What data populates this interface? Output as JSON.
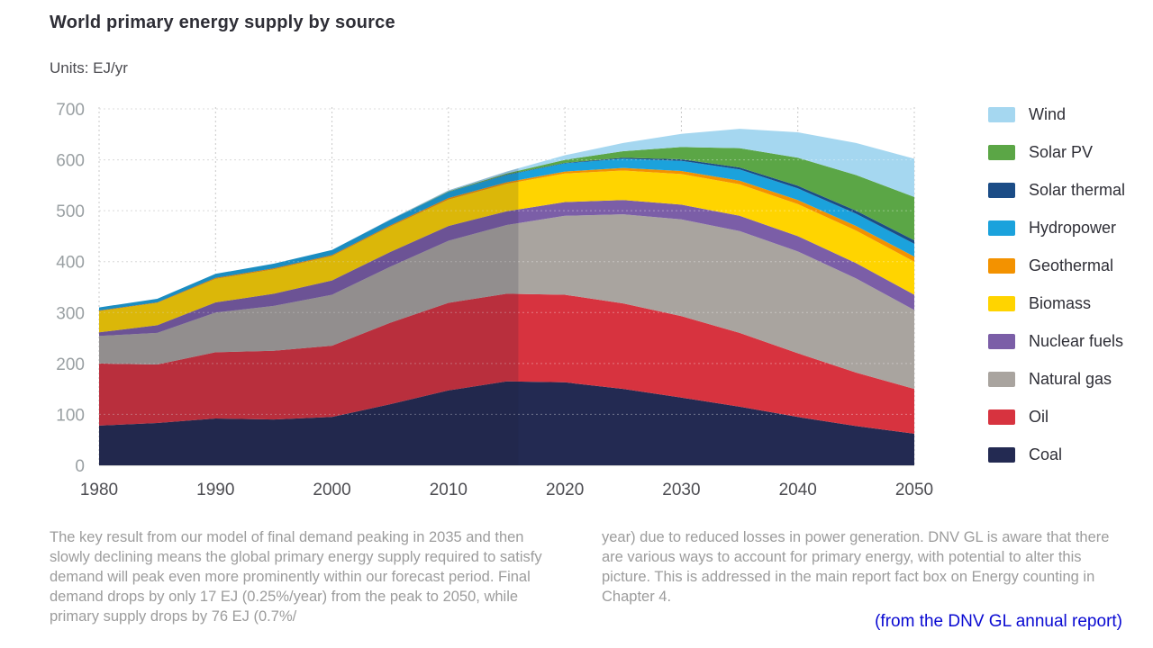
{
  "chart_data": {
    "type": "area",
    "stacked": true,
    "title": "World primary energy supply by source",
    "units_label": "Units: EJ/yr",
    "xlim": [
      1980,
      2050
    ],
    "ylim": [
      0,
      700
    ],
    "x_ticks": [
      1980,
      1990,
      2000,
      2010,
      2020,
      2030,
      2040,
      2050
    ],
    "y_ticks": [
      0,
      100,
      200,
      300,
      400,
      500,
      600,
      700
    ],
    "history_end": 2016,
    "grid": true,
    "legend_position": "right",
    "x": [
      1980,
      1985,
      1990,
      1995,
      2000,
      2005,
      2010,
      2015,
      2020,
      2025,
      2030,
      2035,
      2040,
      2045,
      2050
    ],
    "series": [
      {
        "name": "Coal",
        "color": "#232a52",
        "values": [
          78,
          83,
          92,
          90,
          95,
          120,
          147,
          165,
          163,
          150,
          133,
          115,
          95,
          77,
          62
        ]
      },
      {
        "name": "Oil",
        "color": "#d7333f",
        "values": [
          122,
          115,
          130,
          135,
          140,
          160,
          172,
          172,
          172,
          168,
          160,
          145,
          125,
          105,
          88
        ]
      },
      {
        "name": "Natural gas",
        "color": "#a9a49f",
        "values": [
          54,
          62,
          78,
          88,
          100,
          110,
          122,
          135,
          155,
          175,
          190,
          200,
          200,
          185,
          155
        ]
      },
      {
        "name": "Nuclear fuels",
        "color": "#7b5ea7",
        "values": [
          7,
          15,
          20,
          24,
          28,
          29,
          29,
          27,
          27,
          28,
          29,
          30,
          30,
          30,
          30
        ]
      },
      {
        "name": "Biomass",
        "color": "#ffd400",
        "values": [
          42,
          44,
          46,
          48,
          48,
          50,
          52,
          54,
          56,
          58,
          60,
          62,
          63,
          64,
          65
        ]
      },
      {
        "name": "Geothermal",
        "color": "#f39200",
        "values": [
          1,
          1,
          2,
          2,
          2,
          2,
          3,
          3,
          4,
          5,
          6,
          7,
          8,
          9,
          10
        ]
      },
      {
        "name": "Hydropower",
        "color": "#1ba2dc",
        "values": [
          6,
          7,
          8,
          9,
          10,
          11,
          12,
          14,
          16,
          18,
          20,
          22,
          23,
          24,
          25
        ]
      },
      {
        "name": "Solar thermal",
        "color": "#1b4c86",
        "values": [
          0,
          0,
          0,
          0,
          0,
          0,
          0,
          1,
          1,
          2,
          3,
          4,
          5,
          6,
          7
        ]
      },
      {
        "name": "Solar PV",
        "color": "#5ba646",
        "values": [
          0,
          0,
          0,
          0,
          0,
          0,
          1,
          2,
          6,
          13,
          24,
          38,
          55,
          70,
          85
        ]
      },
      {
        "name": "Wind",
        "color": "#a5d7f0",
        "values": [
          0,
          0,
          0,
          0,
          0,
          1,
          2,
          4,
          9,
          16,
          26,
          38,
          50,
          63,
          75
        ]
      }
    ]
  },
  "text": {
    "left_column": "The key result from our model of final demand peaking in 2035 and then slowly declining means the global primary energy supply required to satisfy demand will peak even more prominently within our forecast period. Final demand drops by only 17 EJ (0.25%/year) from the peak to 2050, while primary supply drops by 76 EJ (0.7%/",
    "right_column": "year) due to reduced losses in power generation. DNV GL is aware that there are various ways to account for primary energy, with potential to alter this picture. This is addressed in the main report fact box on Energy counting in Chapter 4.",
    "caption": "(from the DNV GL annual report)"
  }
}
